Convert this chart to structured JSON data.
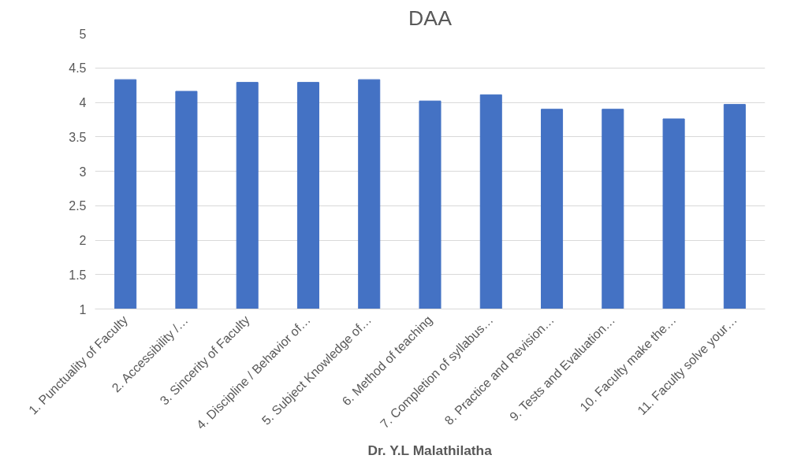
{
  "chart_data": {
    "type": "bar",
    "title": "DAA",
    "xlabel": "Dr. Y.L Malathilatha",
    "categories": [
      "1. Punctuality of Faculty",
      "2. Accessibility /…",
      "3. Sincerity of Faculty",
      "4. Discipline / Behavior of…",
      "5. Subject Knowledge of…",
      "6. Method of teaching",
      "7. Completion of syllabus…",
      "8. Practice and Revision…",
      "9. Tests and Evaluation…",
      "10. Faculty make the…",
      "11. Faculty solve your…"
    ],
    "values": [
      4.33,
      4.16,
      4.29,
      4.29,
      4.33,
      4.02,
      4.11,
      3.9,
      3.9,
      3.76,
      3.97
    ],
    "color": "#4472c4",
    "ylim": [
      1,
      5
    ],
    "yticks": [
      1,
      1.5,
      2,
      2.5,
      3,
      3.5,
      4,
      4.5,
      5
    ],
    "grid": "y"
  }
}
